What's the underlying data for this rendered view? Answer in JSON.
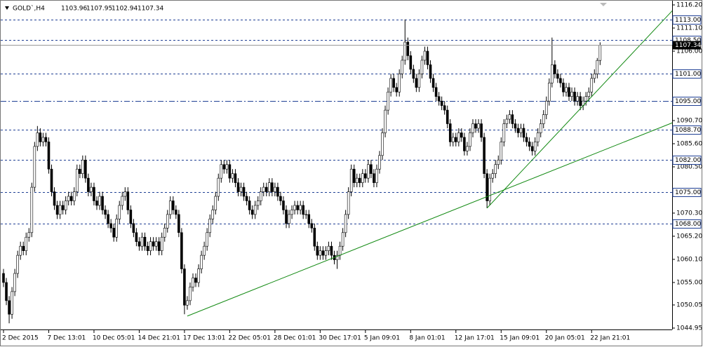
{
  "chart_data": {
    "type": "candlestick",
    "symbol": "GOLD`,H4",
    "categories": [
      "2 Dec 2015",
      null,
      null,
      null,
      null,
      null,
      null,
      null,
      null,
      null,
      null,
      null,
      null,
      null,
      null,
      null,
      "7 Dec 13:01",
      null,
      null,
      null,
      null,
      null,
      null,
      null,
      null,
      null,
      null,
      null,
      null,
      null,
      null,
      null,
      "10 Dec 05:01",
      null,
      null,
      null,
      null,
      null,
      null,
      null,
      null,
      null,
      null,
      null,
      null,
      null,
      null,
      null,
      "14 Dec 21:01",
      null,
      null,
      null,
      null,
      null,
      null,
      null,
      null,
      null,
      null,
      null,
      null,
      null,
      null,
      null,
      "17 Dec 13:01",
      null,
      null,
      null,
      null,
      null,
      null,
      null,
      null,
      null,
      null,
      null,
      null,
      null,
      null,
      null,
      "22 Dec 05:01",
      null,
      null,
      null,
      null,
      null,
      null,
      null,
      null,
      null,
      null,
      null,
      null,
      null,
      null,
      null,
      "28 Dec 01:01",
      null,
      null,
      null,
      null,
      null,
      null,
      null,
      null,
      null,
      null,
      null,
      null,
      null,
      null,
      null,
      "30 Dec 17:01",
      null,
      null,
      null,
      null,
      null,
      null,
      null,
      null,
      null,
      null,
      null,
      null,
      null,
      null,
      null,
      "5 Jan 09:01",
      null,
      null,
      null,
      null,
      null,
      null,
      null,
      null,
      null,
      null,
      null,
      null,
      null,
      null,
      null,
      "8 Jan 01:01",
      null,
      null,
      null,
      null,
      null,
      null,
      null,
      null,
      null,
      null,
      null,
      null,
      null,
      null,
      null,
      "12 Jan 17:01",
      null,
      null,
      null,
      null,
      null,
      null,
      null,
      null,
      null,
      null,
      null,
      null,
      null,
      null,
      null,
      "15 Jan 09:01",
      null,
      null,
      null,
      null,
      null,
      null,
      null,
      null,
      null,
      null,
      null,
      null,
      null,
      null,
      null,
      "20 Jan 05:01",
      null,
      null,
      null,
      null,
      null,
      null,
      null,
      null,
      null,
      null,
      null,
      null,
      null,
      null,
      null,
      "22 Jan 21:01",
      null,
      null,
      null
    ],
    "open": [
      1057,
      1055,
      1051,
      1048,
      1053,
      1057,
      1061,
      1063,
      1062,
      1065,
      1066,
      1076,
      1085,
      1088,
      1086,
      1087,
      1086,
      1080,
      1075,
      1072,
      1070,
      1072,
      1071,
      1073,
      1074,
      1073,
      1075,
      1080,
      1079,
      1082,
      1078,
      1075,
      1076,
      1073,
      1072,
      1074,
      1071,
      1070,
      1068,
      1067,
      1065,
      1069,
      1072,
      1074,
      1075,
      1071,
      1068,
      1066,
      1064,
      1063,
      1065,
      1063,
      1062,
      1064,
      1063,
      1064,
      1062,
      1065,
      1067,
      1070,
      1073,
      1071,
      1070,
      1066,
      1058,
      1050,
      1051,
      1054,
      1056,
      1055,
      1058,
      1061,
      1063,
      1066,
      1069,
      1071,
      1074,
      1078,
      1081,
      1080,
      1081,
      1078,
      1079,
      1077,
      1075,
      1076,
      1074,
      1073,
      1071,
      1070,
      1072,
      1073,
      1075,
      1076,
      1075,
      1077,
      1075,
      1076,
      1074,
      1073,
      1071,
      1068,
      1070,
      1071,
      1072,
      1071,
      1072,
      1070,
      1070,
      1068,
      1067,
      1063,
      1061,
      1062,
      1061,
      1062,
      1063,
      1061,
      1060,
      1061,
      1063,
      1066,
      1070,
      1075,
      1080,
      1077,
      1078,
      1077,
      1079,
      1078,
      1081,
      1079,
      1077,
      1080,
      1083,
      1088,
      1093,
      1097,
      1100,
      1098,
      1097,
      1101,
      1104,
      1108,
      1105,
      1102,
      1100,
      1098,
      1101,
      1104,
      1106,
      1103,
      1100,
      1098,
      1096,
      1095,
      1094,
      1093,
      1090,
      1086,
      1087,
      1086,
      1088,
      1087,
      1084,
      1085,
      1088,
      1090,
      1089,
      1090,
      1087,
      1079,
      1073,
      1078,
      1079,
      1081,
      1082,
      1086,
      1090,
      1091,
      1092,
      1090,
      1089,
      1088,
      1089,
      1087,
      1086,
      1085,
      1084,
      1086,
      1088,
      1090,
      1092,
      1095,
      1099,
      1103,
      1101,
      1100,
      1099,
      1097,
      1098,
      1096,
      1097,
      1095,
      1096,
      1094,
      1095,
      1096,
      1097,
      1100,
      1101,
      1103.96
    ],
    "high": [
      1058,
      1056,
      1052,
      1054,
      1058,
      1062,
      1064,
      1064,
      1066,
      1067,
      1077,
      1086,
      1089.5,
      1089,
      1088,
      1088,
      1087,
      1081,
      1076,
      1073,
      1073,
      1073,
      1074,
      1075,
      1075,
      1076,
      1081,
      1081,
      1083,
      1083,
      1079,
      1077,
      1077,
      1074,
      1075,
      1075,
      1072,
      1071,
      1069,
      1068,
      1070,
      1073,
      1075,
      1076,
      1076,
      1072,
      1069,
      1067,
      1065,
      1066,
      1066,
      1064,
      1065,
      1065,
      1065,
      1065,
      1066,
      1068,
      1071,
      1074,
      1074,
      1072,
      1071,
      1067,
      1059,
      1052,
      1055,
      1057,
      1057,
      1059,
      1062,
      1064,
      1067,
      1070,
      1072,
      1075,
      1079,
      1082,
      1082,
      1082,
      1082,
      1080,
      1080,
      1078,
      1077,
      1077,
      1075,
      1074,
      1072,
      1073,
      1074,
      1076,
      1077,
      1077,
      1078,
      1078,
      1077,
      1077,
      1075,
      1074,
      1072,
      1071,
      1072,
      1073,
      1073,
      1073,
      1073,
      1071,
      1071,
      1069,
      1068,
      1064,
      1063,
      1063,
      1063,
      1064,
      1064,
      1062,
      1062,
      1064,
      1067,
      1071,
      1076,
      1081,
      1081,
      1079,
      1079,
      1080,
      1080,
      1082,
      1082,
      1080,
      1081,
      1084,
      1089,
      1094,
      1098,
      1101,
      1101,
      1099,
      1102,
      1105,
      1113,
      1109,
      1106,
      1103,
      1101,
      1102,
      1105,
      1107,
      1107,
      1104,
      1101,
      1099,
      1097,
      1096,
      1095,
      1094,
      1091,
      1088,
      1088,
      1089,
      1089,
      1088,
      1086,
      1089,
      1091,
      1091,
      1091,
      1091,
      1088,
      1080,
      1079,
      1080,
      1082,
      1083,
      1087,
      1091,
      1092,
      1093,
      1093,
      1091,
      1090,
      1090,
      1090,
      1088,
      1087,
      1086,
      1087,
      1089,
      1091,
      1093,
      1096,
      1100,
      1109,
      1104,
      1102,
      1101,
      1100,
      1099,
      1099,
      1098,
      1098,
      1097,
      1097,
      1096,
      1097,
      1098,
      1101,
      1102,
      1104.5,
      1107.95
    ],
    "low": [
      1054,
      1050,
      1046,
      1047,
      1052,
      1056,
      1060,
      1061,
      1061,
      1064,
      1065,
      1075,
      1084,
      1085,
      1085,
      1085,
      1079,
      1074,
      1071,
      1069,
      1069,
      1070,
      1070,
      1072,
      1072,
      1072,
      1074,
      1078,
      1078,
      1077,
      1074,
      1074,
      1072,
      1071,
      1071,
      1070,
      1069,
      1067,
      1066,
      1064,
      1064,
      1068,
      1071,
      1073,
      1070,
      1067,
      1065,
      1063,
      1062,
      1062,
      1062,
      1061,
      1061,
      1062,
      1062,
      1061,
      1061,
      1064,
      1066,
      1069,
      1070,
      1069,
      1065,
      1057,
      1048,
      1049,
      1050,
      1053,
      1054,
      1054,
      1057,
      1060,
      1062,
      1065,
      1068,
      1070,
      1073,
      1077,
      1079,
      1079,
      1077,
      1077,
      1076,
      1074,
      1074,
      1073,
      1072,
      1070,
      1069,
      1069,
      1071,
      1072,
      1074,
      1074,
      1074,
      1074,
      1074,
      1073,
      1072,
      1070,
      1067,
      1067,
      1069,
      1070,
      1070,
      1070,
      1069,
      1069,
      1067,
      1066,
      1062,
      1060,
      1060,
      1060,
      1060,
      1061,
      1060,
      1059,
      1058,
      1060,
      1062,
      1065,
      1069,
      1074,
      1076,
      1076,
      1076,
      1076,
      1077,
      1077,
      1078,
      1076,
      1076,
      1079,
      1082,
      1087,
      1092,
      1096,
      1097,
      1096,
      1096,
      1100,
      1103,
      1104,
      1101,
      1099,
      1097,
      1097,
      1100,
      1103,
      1102,
      1099,
      1097,
      1095,
      1094,
      1093,
      1092,
      1089,
      1085,
      1085,
      1085,
      1085,
      1086,
      1083,
      1083,
      1084,
      1087,
      1088,
      1088,
      1086,
      1078,
      1071.4,
      1072,
      1077,
      1078,
      1080,
      1081,
      1085,
      1089,
      1090,
      1089,
      1088,
      1087,
      1087,
      1086,
      1085,
      1084,
      1083,
      1083,
      1085,
      1087,
      1089,
      1091,
      1094,
      1098,
      1100,
      1099,
      1098,
      1096,
      1096,
      1095,
      1095,
      1094,
      1094,
      1093,
      1093,
      1094,
      1095,
      1096,
      1099,
      1100,
      1102.94
    ],
    "close": [
      1055,
      1051,
      1048,
      1053,
      1057,
      1061,
      1063,
      1062,
      1065,
      1066,
      1076,
      1085,
      1088,
      1086,
      1087,
      1086,
      1080,
      1075,
      1072,
      1070,
      1072,
      1071,
      1073,
      1074,
      1073,
      1075,
      1080,
      1079,
      1082,
      1078,
      1075,
      1076,
      1073,
      1072,
      1074,
      1071,
      1070,
      1068,
      1067,
      1065,
      1069,
      1072,
      1074,
      1075,
      1071,
      1068,
      1066,
      1064,
      1063,
      1065,
      1063,
      1062,
      1064,
      1063,
      1064,
      1062,
      1065,
      1067,
      1070,
      1073,
      1071,
      1070,
      1066,
      1058,
      1050,
      1051,
      1054,
      1056,
      1055,
      1058,
      1061,
      1063,
      1066,
      1069,
      1071,
      1074,
      1078,
      1081,
      1080,
      1081,
      1078,
      1079,
      1077,
      1075,
      1076,
      1074,
      1073,
      1071,
      1070,
      1072,
      1073,
      1075,
      1076,
      1075,
      1077,
      1075,
      1076,
      1074,
      1073,
      1071,
      1068,
      1070,
      1071,
      1072,
      1071,
      1072,
      1070,
      1070,
      1068,
      1067,
      1063,
      1061,
      1062,
      1061,
      1062,
      1063,
      1061,
      1060,
      1061,
      1063,
      1066,
      1070,
      1075,
      1080,
      1077,
      1078,
      1077,
      1079,
      1078,
      1081,
      1079,
      1077,
      1080,
      1083,
      1088,
      1093,
      1097,
      1100,
      1098,
      1097,
      1101,
      1104,
      1108,
      1105,
      1102,
      1100,
      1098,
      1101,
      1104,
      1106,
      1103,
      1100,
      1098,
      1096,
      1095,
      1094,
      1093,
      1090,
      1086,
      1087,
      1086,
      1088,
      1087,
      1084,
      1085,
      1088,
      1090,
      1089,
      1090,
      1087,
      1079,
      1073,
      1078,
      1079,
      1081,
      1082,
      1086,
      1090,
      1091,
      1092,
      1090,
      1089,
      1088,
      1089,
      1087,
      1086,
      1085,
      1084,
      1086,
      1088,
      1090,
      1092,
      1095,
      1099,
      1103,
      1101,
      1100,
      1099,
      1097,
      1098,
      1096,
      1097,
      1095,
      1096,
      1094,
      1095,
      1096,
      1097,
      1100,
      1101,
      1103.96,
      1107.34
    ],
    "bull_color": "#ffffff",
    "bear_color": "#000000",
    "ylim": [
      1044.95,
      1116.2
    ],
    "yticks": [
      {
        "value": 1116.2,
        "label": "1116.20"
      },
      {
        "value": 1111.1,
        "label": "1111.10"
      },
      {
        "value": 1106,
        "label": "1106.00"
      },
      {
        "value": 1090.7,
        "label": "1090.70"
      },
      {
        "value": 1085.6,
        "label": "1085.60"
      },
      {
        "value": 1080.5,
        "label": "1080.50"
      },
      {
        "value": 1070.3,
        "label": "1070.30"
      },
      {
        "value": 1065.2,
        "label": "1065.20"
      },
      {
        "value": 1060.1,
        "label": "1060.10"
      },
      {
        "value": 1055,
        "label": "1055.00"
      },
      {
        "value": 1050.05,
        "label": "1050.05"
      },
      {
        "value": 1044.95,
        "label": "1044.95"
      }
    ],
    "levels": [
      {
        "value": 1113,
        "label": "1113.00",
        "style": "dashed"
      },
      {
        "value": 1108.5,
        "label": "1108.50",
        "style": "dashed"
      },
      {
        "value": 1101,
        "label": "1101.00",
        "style": "dashed"
      },
      {
        "value": 1095,
        "label": "1095.00",
        "style": "dashdot"
      },
      {
        "value": 1088.7,
        "label": "1088.70",
        "style": "dashed"
      },
      {
        "value": 1082,
        "label": "1082.00",
        "style": "dashed"
      },
      {
        "value": 1075,
        "label": "1075.00",
        "style": "dashed"
      },
      {
        "value": 1068,
        "label": "1068.00",
        "style": "dashed"
      }
    ],
    "level_color": "#1f3f94",
    "trendline_color": "#138a13",
    "trendlines": [
      {
        "x": [
          65,
          236.5
        ],
        "y": [
          1047.6,
          1090.2
        ]
      },
      {
        "x": [
          171,
          236.5
        ],
        "y": [
          1071.4,
          1114.9
        ]
      }
    ]
  }
}
